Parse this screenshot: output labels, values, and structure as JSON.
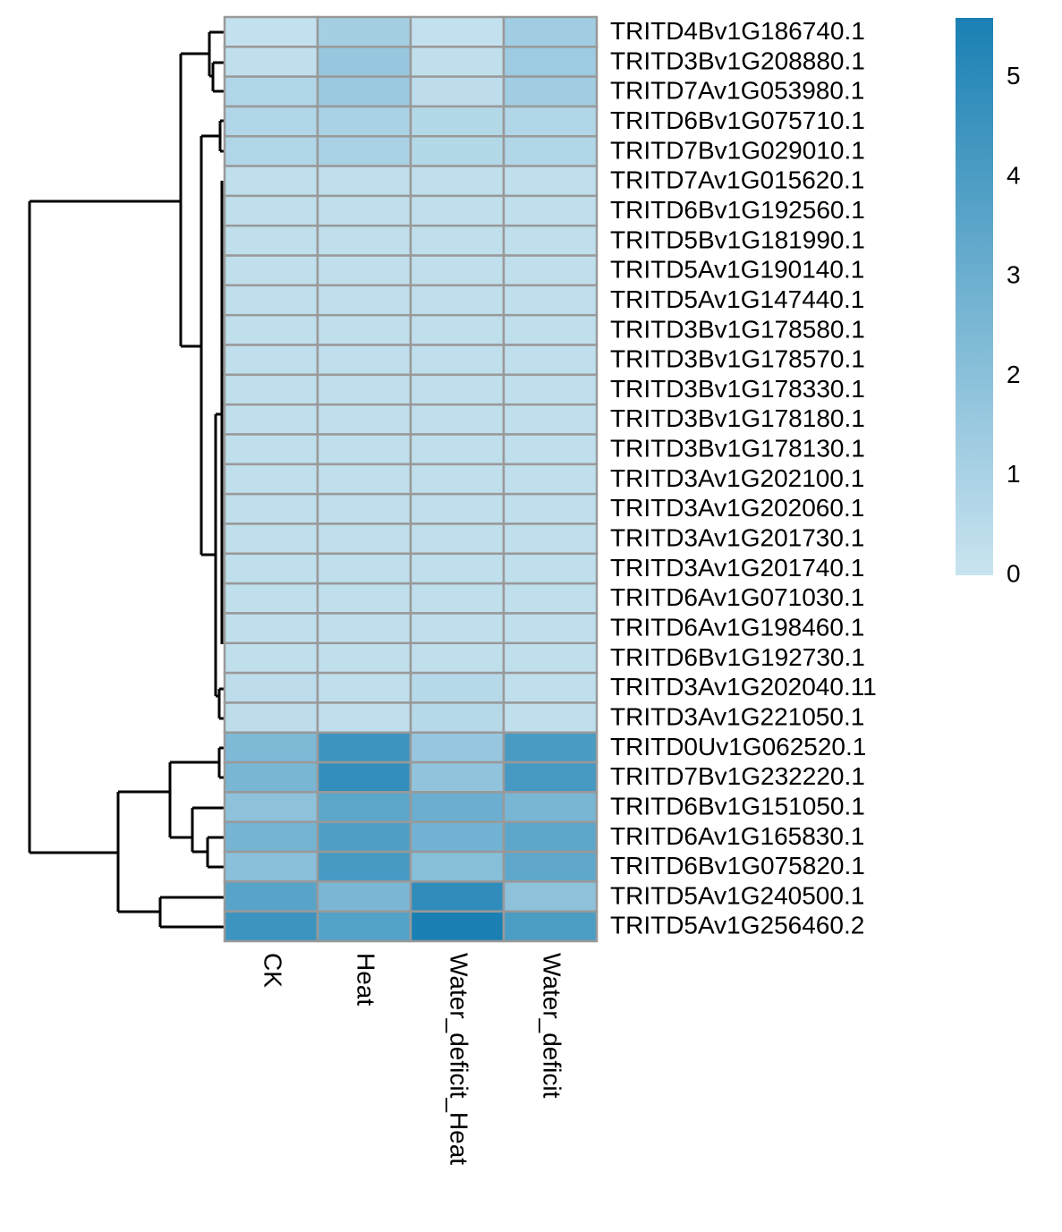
{
  "chart_data": {
    "type": "heatmap",
    "categories": [
      "CK",
      "Heat",
      "Water_deficit_Heat",
      "Water_deficit"
    ],
    "rows": [
      "TRITD4Bv1G186740.1",
      "TRITD3Bv1G208880.1",
      "TRITD7Av1G053980.1",
      "TRITD6Bv1G075710.1",
      "TRITD7Bv1G029010.1",
      "TRITD7Av1G015620.1",
      "TRITD6Bv1G192560.1",
      "TRITD5Bv1G181990.1",
      "TRITD5Av1G190140.1",
      "TRITD5Av1G147440.1",
      "TRITD3Bv1G178580.1",
      "TRITD3Bv1G178570.1",
      "TRITD3Bv1G178330.1",
      "TRITD3Bv1G178180.1",
      "TRITD3Bv1G178130.1",
      "TRITD3Av1G202100.1",
      "TRITD3Av1G202060.1",
      "TRITD3Av1G201730.1",
      "TRITD3Av1G201740.1",
      "TRITD6Av1G071030.1",
      "TRITD6Av1G198460.1",
      "TRITD6Bv1G192730.1",
      "TRITD3Av1G202040.11",
      "TRITD3Av1G221050.1",
      "TRITD0Uv1G062520.1",
      "TRITD7Bv1G232220.1",
      "TRITD6Bv1G151050.1",
      "TRITD6Av1G165830.1",
      "TRITD6Bv1G075820.1",
      "TRITD5Av1G240500.1",
      "TRITD5Av1G256460.2"
    ],
    "values": [
      [
        0.2,
        1.2,
        0.2,
        1.3
      ],
      [
        0.3,
        1.6,
        0.3,
        1.4
      ],
      [
        0.8,
        1.5,
        0.4,
        1.3
      ],
      [
        0.8,
        1.0,
        0.7,
        0.8
      ],
      [
        0.8,
        1.0,
        0.7,
        0.8
      ],
      [
        0.3,
        0.3,
        0.3,
        0.3
      ],
      [
        0.3,
        0.3,
        0.3,
        0.3
      ],
      [
        0.3,
        0.3,
        0.3,
        0.3
      ],
      [
        0.3,
        0.3,
        0.3,
        0.3
      ],
      [
        0.3,
        0.3,
        0.3,
        0.3
      ],
      [
        0.3,
        0.3,
        0.3,
        0.3
      ],
      [
        0.3,
        0.3,
        0.3,
        0.3
      ],
      [
        0.3,
        0.3,
        0.3,
        0.3
      ],
      [
        0.3,
        0.3,
        0.3,
        0.3
      ],
      [
        0.3,
        0.3,
        0.3,
        0.3
      ],
      [
        0.3,
        0.3,
        0.3,
        0.3
      ],
      [
        0.3,
        0.3,
        0.3,
        0.3
      ],
      [
        0.3,
        0.3,
        0.3,
        0.3
      ],
      [
        0.3,
        0.3,
        0.3,
        0.3
      ],
      [
        0.3,
        0.3,
        0.3,
        0.3
      ],
      [
        0.3,
        0.3,
        0.3,
        0.3
      ],
      [
        0.3,
        0.3,
        0.3,
        0.3
      ],
      [
        0.4,
        0.3,
        0.6,
        0.3
      ],
      [
        0.4,
        0.3,
        0.6,
        0.3
      ],
      [
        2.4,
        4.5,
        1.6,
        4.1
      ],
      [
        2.6,
        4.8,
        1.8,
        4.2
      ],
      [
        1.9,
        3.5,
        3.0,
        2.6
      ],
      [
        2.7,
        3.9,
        2.8,
        3.5
      ],
      [
        2.0,
        4.2,
        2.1,
        3.4
      ],
      [
        3.6,
        2.5,
        4.9,
        1.9
      ],
      [
        4.5,
        3.7,
        5.6,
        4.0
      ]
    ],
    "colors": [
      "#c9e4f0",
      "#1a80b3"
    ],
    "zlim": [
      0,
      5.6
    ],
    "zticks": [
      0,
      1,
      2,
      3,
      4,
      5
    ]
  }
}
